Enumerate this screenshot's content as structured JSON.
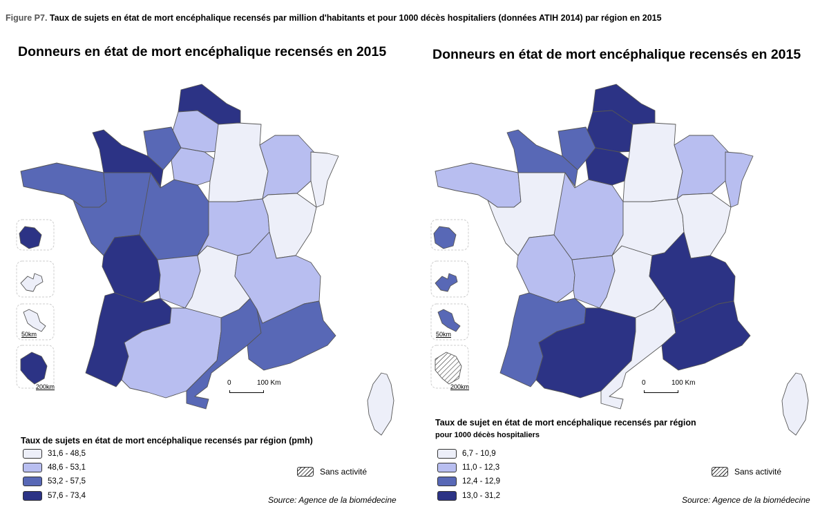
{
  "figure": {
    "number": "Figure P7.",
    "caption": "Taux de sujets en état de mort encéphalique recensés par million d'habitants et pour 1000 décès hospitaliers (données ATIH 2014) par région en 2015"
  },
  "colors": {
    "class1": "#edeff9",
    "class2": "#b8bef0",
    "class3": "#5868b6",
    "class4": "#2c3385",
    "border": "#555555",
    "insetFrame": "#cccccc"
  },
  "maps": [
    {
      "title": "Donneurs en état de mort encéphalique recensés en 2015",
      "legend_title": "Taux de sujets en état de mort encéphalique recensés par région (pmh)",
      "legend_subtitle": "",
      "legend": [
        {
          "label": "31,6 - 48,5",
          "color": "#edeff9"
        },
        {
          "label": "48,6 - 53,1",
          "color": "#b8bef0"
        },
        {
          "label": "53,2 - 57,5",
          "color": "#5868b6"
        },
        {
          "label": "57,6 - 73,4",
          "color": "#2c3385"
        }
      ],
      "no_activity_label": "Sans activité",
      "source": "Source: Agence de la biomédecine",
      "scale": {
        "zero": "0",
        "max": "100 Km"
      },
      "inset_labels": {
        "small": "50km",
        "large": "200km"
      },
      "region_classes": {
        "nord_pas_de_calais": 4,
        "picardie": 2,
        "haute_normandie": 3,
        "basse_normandie": 4,
        "bretagne": 3,
        "pays_de_la_loire": 3,
        "centre": 3,
        "ile_de_france": 2,
        "champagne_ardenne": 1,
        "lorraine": 2,
        "alsace": 1,
        "bourgogne": 2,
        "franche_comte": 1,
        "poitou_charentes": 4,
        "limousin": 2,
        "auvergne": 1,
        "rhone_alpes": 2,
        "aquitaine": 4,
        "midi_pyrenees": 2,
        "languedoc_roussillon": 3,
        "paca": 3,
        "corse": 1,
        "reunion": 4,
        "guadeloupe": 1,
        "martinique": 1,
        "guyane": 4
      }
    },
    {
      "title": "Donneurs en état de mort encéphalique recensés en 2015",
      "legend_title": "Taux de sujet en état de mort encéphalique recensés par région",
      "legend_subtitle": "pour 1000 décès hospitaliers",
      "legend": [
        {
          "label": "6,7 - 10,9",
          "color": "#edeff9"
        },
        {
          "label": "11,0 - 12,3",
          "color": "#b8bef0"
        },
        {
          "label": "12,4 - 12,9",
          "color": "#5868b6"
        },
        {
          "label": "13,0 - 31,2",
          "color": "#2c3385"
        }
      ],
      "no_activity_label": "Sans activité",
      "source": "Source: Agence de la biomédecine",
      "scale": {
        "zero": "0",
        "max": "100 Km"
      },
      "inset_labels": {
        "small": "50km",
        "large": "200km"
      },
      "region_classes": {
        "nord_pas_de_calais": 4,
        "picardie": 4,
        "haute_normandie": 3,
        "basse_normandie": 3,
        "bretagne": 2,
        "pays_de_la_loire": 1,
        "centre": 2,
        "ile_de_france": 4,
        "champagne_ardenne": 1,
        "lorraine": 2,
        "alsace": 2,
        "bourgogne": 1,
        "franche_comte": 1,
        "poitou_charentes": 2,
        "limousin": 2,
        "auvergne": 1,
        "rhone_alpes": 4,
        "aquitaine": 3,
        "midi_pyrenees": 4,
        "languedoc_roussillon": 1,
        "paca": 4,
        "corse": 1,
        "reunion": 3,
        "guadeloupe": 3,
        "martinique": 3,
        "guyane": 0
      }
    }
  ]
}
